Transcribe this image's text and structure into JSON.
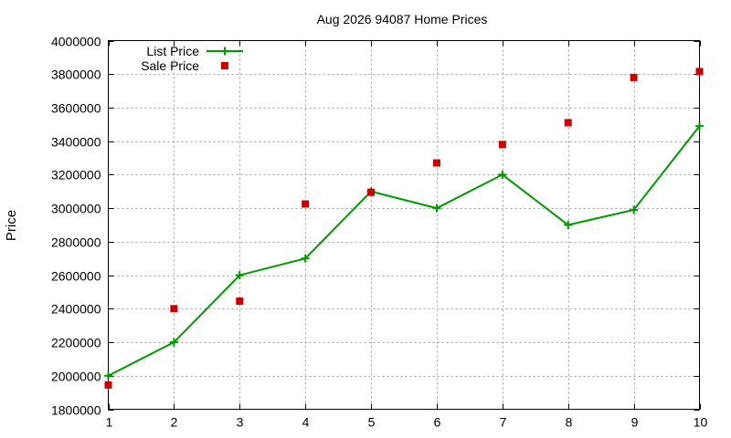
{
  "chart_data": {
    "type": "line",
    "title": "Aug 2026 94087 Home Prices",
    "xlabel": "",
    "ylabel": "Price",
    "x": [
      1,
      2,
      3,
      4,
      5,
      6,
      7,
      8,
      9,
      10
    ],
    "xlim": [
      1,
      10
    ],
    "ylim": [
      1800000,
      4000000
    ],
    "x_ticks": [
      "1",
      "2",
      "3",
      "4",
      "5",
      "6",
      "7",
      "8",
      "9",
      "10"
    ],
    "y_ticks": [
      "1800000",
      "2000000",
      "2200000",
      "2400000",
      "2600000",
      "2800000",
      "3000000",
      "3200000",
      "3400000",
      "3600000",
      "3800000",
      "4000000"
    ],
    "grid": true,
    "legend_position": "top-left",
    "series": [
      {
        "name": "List Price",
        "style": "line-with-plus-markers",
        "color": "#009900",
        "x": [
          1,
          2,
          3,
          4,
          5,
          6,
          7,
          8,
          9,
          10
        ],
        "values": [
          2000000,
          2200000,
          2600000,
          2700000,
          3100000,
          3000000,
          3200000,
          2900000,
          2990000,
          3490000
        ]
      },
      {
        "name": "Sale Price",
        "style": "square-markers",
        "color": "#cc0000",
        "x": [
          1,
          2,
          3,
          4,
          5,
          6,
          7,
          8,
          9,
          10
        ],
        "values": [
          1945000,
          2400000,
          2445000,
          3025000,
          3095000,
          3270000,
          3380000,
          3510000,
          3780000,
          3815000
        ]
      }
    ]
  }
}
